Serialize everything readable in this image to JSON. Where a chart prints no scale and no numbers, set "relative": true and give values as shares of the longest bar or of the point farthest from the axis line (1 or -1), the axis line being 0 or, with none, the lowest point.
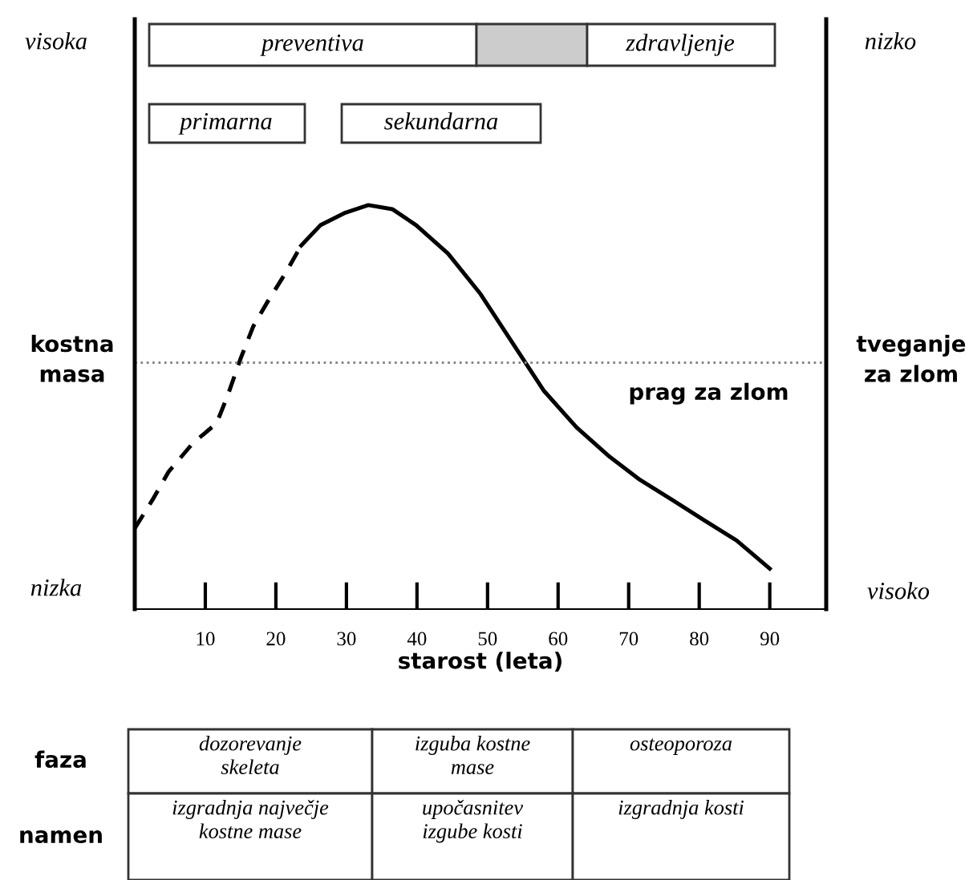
{
  "chart_data": {
    "type": "line",
    "relative": true,
    "xlabel": "starost (leta)",
    "ylabel": "kostna masa",
    "y2label": "tveganje za zlom",
    "xlim": [
      0,
      98
    ],
    "xticks": [
      10,
      20,
      30,
      40,
      50,
      60,
      70,
      80,
      90
    ],
    "grid": false,
    "marker": "none",
    "series": [
      {
        "color": "#000000",
        "line_style": "dashed",
        "x": [
          0,
          2.5,
          4.8,
          8.2,
          11.6,
          13.2,
          15.0,
          16.8,
          18.8,
          21.3,
          23.6
        ],
        "values": [
          0.2,
          0.27,
          0.34,
          0.41,
          0.46,
          0.53,
          0.62,
          0.7,
          0.76,
          0.83,
          0.9
        ]
      },
      {
        "color": "#000000",
        "line_style": "solid",
        "x": [
          23.6,
          26.3,
          29.7,
          33.1,
          36.5,
          39.9,
          44.4,
          49.0,
          53.5,
          58.0,
          62.6,
          67.1,
          71.6,
          76.2,
          80.7,
          85.3,
          90.0
        ],
        "values": [
          0.9,
          0.95,
          0.98,
          1.0,
          0.99,
          0.95,
          0.88,
          0.78,
          0.66,
          0.54,
          0.45,
          0.38,
          0.32,
          0.27,
          0.22,
          0.17,
          0.1
        ]
      }
    ],
    "ref_lines": [
      {
        "axis": "y",
        "value": 0.61,
        "label": "prag za zlom",
        "color": "#888888",
        "line_style": "dotted"
      }
    ],
    "annotations": [
      "visoka",
      "nizka",
      "nizko",
      "visoko",
      "preventiva",
      "zdravljenje",
      "primarna",
      "sekundarna",
      "faza",
      "namen",
      "dozorevanje skeleta",
      "izguba kostne mase",
      "osteoporoza",
      "izgradnja največje kostne mase",
      "upočasnitev izgube kosti",
      "izgradnja kosti"
    ]
  }
}
